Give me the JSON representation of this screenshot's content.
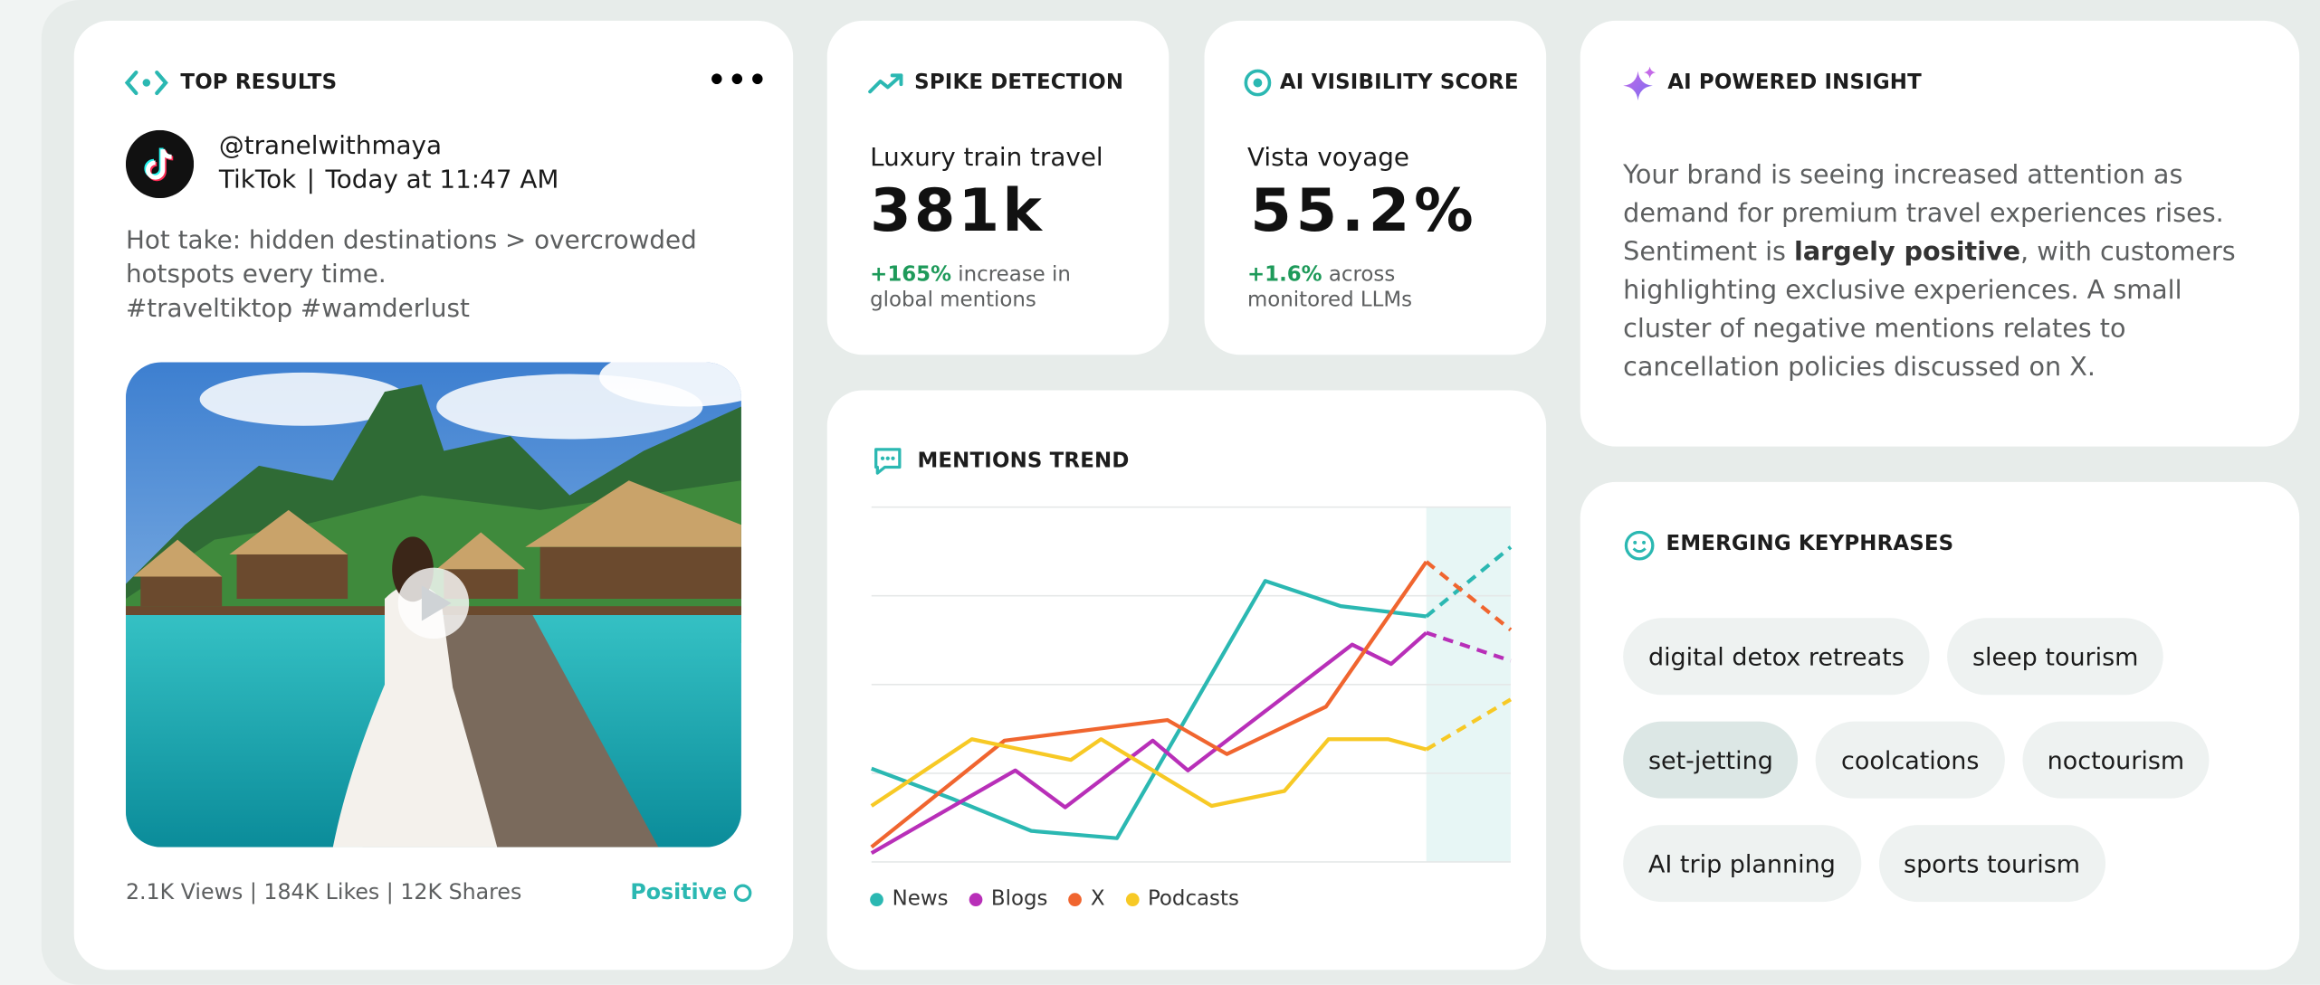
{
  "top_results": {
    "title": "TOP RESULTS",
    "handle": "@tranelwithmaya",
    "platform": "TikTok",
    "time": "Today at 11:47 AM",
    "post_text": "Hot take: hidden destinations > overcrowded hotspots every time.",
    "hashtags": "#traveltiktop #wamderlust",
    "stats": "2.1K Views | 184K Likes | 12K Shares",
    "sentiment": "Positive"
  },
  "spike_detection": {
    "title": "SPIKE DETECTION",
    "topic": "Luxury train travel",
    "value": "381k",
    "change": "+165%",
    "change_text": "increase in global mentions"
  },
  "ai_visibility": {
    "title": "AI VISIBILITY SCORE",
    "topic": "Vista voyage",
    "value": "55.2%",
    "change": "+1.6%",
    "change_text": "across monitored LLMs"
  },
  "insight": {
    "title": "AI POWERED INSIGHT",
    "text_before": "Your brand is seeing increased attention as demand for premium travel experiences rises. Sentiment is ",
    "text_bold": "largely positive",
    "text_after": ", with customers highlighting exclusive experiences. A small cluster of negative mentions relates to cancellation policies discussed on X."
  },
  "keyphrases": {
    "title": "EMERGING KEYPHRASES",
    "items": [
      "digital detox retreats",
      "sleep tourism",
      "set-jetting",
      "coolcations",
      "noctourism",
      "AI trip planning",
      "sports tourism"
    ],
    "highlighted_index": 2
  },
  "chart_data": {
    "type": "line",
    "title": "MENTIONS TREND",
    "xlim": [
      0,
      100
    ],
    "ylim": [
      0,
      100
    ],
    "yticks": [
      0,
      25,
      50,
      75,
      100
    ],
    "grid": true,
    "forecast_start": 86.8,
    "series": [
      {
        "name": "News",
        "color": "#2bb8b2",
        "x": [
          0,
          12.5,
          25,
          38.4,
          61.6,
          73.4,
          86.8,
          100
        ],
        "values": [
          26.3,
          17.9,
          8.75,
          6.7,
          79.2,
          72.1,
          69.2,
          88.75
        ]
      },
      {
        "name": "Blogs",
        "color": "#b82fb8",
        "x": [
          0,
          22.5,
          30.3,
          44,
          49.5,
          75.2,
          81.3,
          86.8,
          100
        ],
        "values": [
          2.5,
          25.8,
          15.4,
          34.2,
          25.8,
          61.25,
          55.8,
          64.6,
          56.7
        ]
      },
      {
        "name": "X",
        "color": "#f0652f",
        "x": [
          0,
          20.8,
          46.3,
          55.6,
          71.1,
          86.8,
          100
        ],
        "values": [
          4.2,
          34.2,
          40,
          30.4,
          43.75,
          84.6,
          65.4
        ]
      },
      {
        "name": "Podcasts",
        "color": "#f7c925",
        "x": [
          0,
          15.7,
          31.2,
          35.9,
          53.2,
          64.6,
          71.5,
          80.8,
          86.8,
          100
        ],
        "values": [
          15.8,
          34.6,
          28.75,
          34.6,
          15.8,
          20,
          34.6,
          34.6,
          31.7,
          45.8
        ]
      }
    ]
  }
}
